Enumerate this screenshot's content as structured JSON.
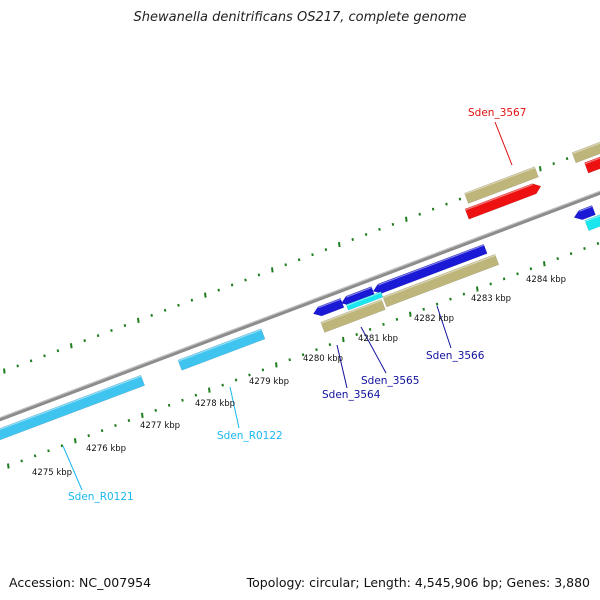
{
  "title": "Shewanella denitrificans OS217, complete genome",
  "footer": {
    "accession": "Accession: NC_007954",
    "summary": "Topology: circular; Length: 4,545,906 bp; Genes: 3,880"
  },
  "colors": {
    "backbone": "#8c8c8c",
    "tick": "#1e7d1e",
    "rRNA": "#3fc4f0",
    "cds_forward": "#1a1ad6",
    "cds_highlight": "#ee1111",
    "tan": "#bdb57a",
    "cyan": "#19e6ee",
    "label_rRNA": "#1ab7ef",
    "label_cds": "#10109e",
    "label_highlight": "#e01010"
  },
  "scale_labels": [
    {
      "name": "scale-label-4275",
      "text": "4275 kbp"
    },
    {
      "name": "scale-label-4276",
      "text": "4276 kbp"
    },
    {
      "name": "scale-label-4277",
      "text": "4277 kbp"
    },
    {
      "name": "scale-label-4278",
      "text": "4278 kbp"
    },
    {
      "name": "scale-label-4279",
      "text": "4279 kbp"
    },
    {
      "name": "scale-label-4280",
      "text": "4280 kbp"
    },
    {
      "name": "scale-label-4281",
      "text": "4281 kbp"
    },
    {
      "name": "scale-label-4282",
      "text": "4282 kbp"
    },
    {
      "name": "scale-label-4283",
      "text": "4283 kbp"
    },
    {
      "name": "scale-label-4284",
      "text": "4284 kbp"
    }
  ],
  "gene_labels": [
    {
      "name": "gene-label-sden-r0121",
      "text": "Sden_R0121",
      "color": "#1ab7ef"
    },
    {
      "name": "gene-label-sden-r0122",
      "text": "Sden_R0122",
      "color": "#1ab7ef"
    },
    {
      "name": "gene-label-sden-3564",
      "text": "Sden_3564",
      "color": "#10109e"
    },
    {
      "name": "gene-label-sden-3565",
      "text": "Sden_3565",
      "color": "#10109e"
    },
    {
      "name": "gene-label-sden-3566",
      "text": "Sden_3566",
      "color": "#10109e"
    },
    {
      "name": "gene-label-sden-3567",
      "text": "Sden_3567",
      "color": "#e01010"
    }
  ]
}
